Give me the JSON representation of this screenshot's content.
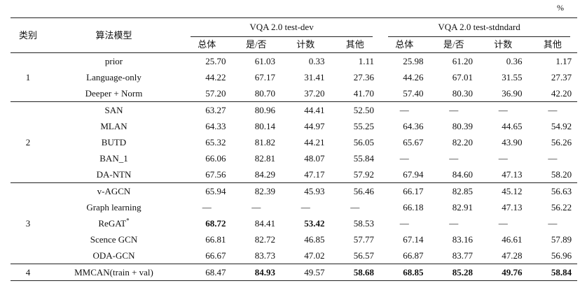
{
  "unit": "%",
  "header": {
    "category": "类别",
    "model": "算法模型",
    "group_dev": "VQA 2.0 test-dev",
    "group_std": "VQA 2.0 test-stdndard",
    "subcols": [
      "总体",
      "是/否",
      "计数",
      "其他"
    ]
  },
  "rows": [
    {
      "cat": "",
      "model": "prior",
      "dev": [
        "25.70",
        "61.03",
        "0.33",
        "1.11"
      ],
      "std": [
        "25.98",
        "61.20",
        "0.36",
        "1.17"
      ]
    },
    {
      "cat": "1",
      "model": "Language-only",
      "dev": [
        "44.22",
        "67.17",
        "31.41",
        "27.36"
      ],
      "std": [
        "44.26",
        "67.01",
        "31.55",
        "27.37"
      ]
    },
    {
      "cat": "",
      "model": "Deeper + Norm",
      "dev": [
        "57.20",
        "80.70",
        "37.20",
        "41.70"
      ],
      "std": [
        "57.40",
        "80.30",
        "36.90",
        "42.20"
      ]
    },
    {
      "cat": "",
      "model": "SAN",
      "dev": [
        "63.27",
        "80.96",
        "44.41",
        "52.50"
      ],
      "std": [
        "—",
        "—",
        "—",
        "—"
      ]
    },
    {
      "cat": "",
      "model": "MLAN",
      "dev": [
        "64.33",
        "80.14",
        "44.97",
        "55.25"
      ],
      "std": [
        "64.36",
        "80.39",
        "44.65",
        "54.92"
      ]
    },
    {
      "cat": "2",
      "model": "BUTD",
      "dev": [
        "65.32",
        "81.82",
        "44.21",
        "56.05"
      ],
      "std": [
        "65.67",
        "82.20",
        "43.90",
        "56.26"
      ]
    },
    {
      "cat": "",
      "model": "BAN_1",
      "dev": [
        "66.06",
        "82.81",
        "48.07",
        "55.84"
      ],
      "std": [
        "—",
        "—",
        "—",
        "—"
      ]
    },
    {
      "cat": "",
      "model": "DA-NTN",
      "dev": [
        "67.56",
        "84.29",
        "47.17",
        "57.92"
      ],
      "std": [
        "67.94",
        "84.60",
        "47.13",
        "58.20"
      ]
    },
    {
      "cat": "",
      "model": "v-AGCN",
      "dev": [
        "65.94",
        "82.39",
        "45.93",
        "56.46"
      ],
      "std": [
        "66.17",
        "82.85",
        "45.12",
        "56.63"
      ]
    },
    {
      "cat": "",
      "model": "Graph learning",
      "dev": [
        "—",
        "—",
        "—",
        "—"
      ],
      "std": [
        "66.18",
        "82.91",
        "47.13",
        "56.22"
      ]
    },
    {
      "cat": "3",
      "model": "ReGAT",
      "model_sup": "*",
      "dev": [
        "68.72",
        "84.41",
        "53.42",
        "58.53"
      ],
      "std": [
        "—",
        "—",
        "—",
        "—"
      ]
    },
    {
      "cat": "",
      "model": "Scence GCN",
      "dev": [
        "66.81",
        "82.72",
        "46.85",
        "57.77"
      ],
      "std": [
        "67.14",
        "83.16",
        "46.61",
        "57.89"
      ]
    },
    {
      "cat": "",
      "model": "ODA-GCN",
      "dev": [
        "66.67",
        "83.73",
        "47.02",
        "56.57"
      ],
      "std": [
        "66.87",
        "83.77",
        "47.28",
        "56.96"
      ]
    },
    {
      "cat": "4",
      "model": "MMCAN(train + val)",
      "dev": [
        "68.47",
        "84.93",
        "49.57",
        "58.68"
      ],
      "std": [
        "68.85",
        "85.28",
        "49.76",
        "58.84"
      ]
    }
  ]
}
